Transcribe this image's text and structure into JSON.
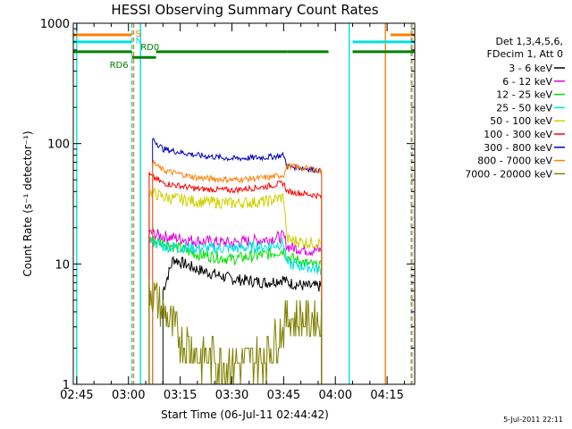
{
  "chart_data": {
    "type": "line",
    "title": "HESSI Observing Summary Count Rates",
    "xlabel": "Start Time (06-Jul-11 02:44:42)",
    "ylabel": "Count Rate (s⁻¹ detector⁻¹)",
    "ylog": true,
    "ylim": [
      1,
      1000
    ],
    "xlim_minutes": [
      -1,
      98
    ],
    "x_ticks": [
      {
        "m": 0,
        "label": "02:45"
      },
      {
        "m": 15,
        "label": "03:00"
      },
      {
        "m": 30,
        "label": "03:15"
      },
      {
        "m": 45,
        "label": "03:30"
      },
      {
        "m": 60,
        "label": "03:45"
      },
      {
        "m": 75,
        "label": "04:00"
      },
      {
        "m": 90,
        "label": "04:15"
      }
    ],
    "y_ticks": [
      {
        "v": 1,
        "label": "1"
      },
      {
        "v": 10,
        "label": "10"
      },
      {
        "v": 100,
        "label": "100"
      },
      {
        "v": 1000,
        "label": "1000"
      }
    ],
    "legend": {
      "title_line1": "Det 1,3,4,5,6,",
      "title_line2": "FDecim 1, Att 0",
      "placement": "right"
    },
    "series": [
      {
        "name": "3 - 6 keV",
        "color": "#000000",
        "x": [
          25,
          28,
          35,
          45,
          55,
          60,
          61,
          67,
          70,
          71
        ],
        "y": [
          6,
          11,
          9,
          7.5,
          7,
          7.5,
          7,
          6.5,
          6.5,
          6.5
        ]
      },
      {
        "name": "6 - 12 keV",
        "color": "#e000e0",
        "x": [
          21,
          25,
          35,
          45,
          55,
          60,
          61,
          67,
          70,
          71
        ],
        "y": [
          18,
          17,
          15.5,
          15,
          16,
          17,
          14,
          13,
          13,
          13
        ]
      },
      {
        "name": "12 - 25 keV",
        "color": "#00e000",
        "x": [
          21,
          25,
          35,
          45,
          55,
          60,
          61,
          67,
          70,
          71
        ],
        "y": [
          16,
          15,
          12,
          11,
          12,
          13,
          11.5,
          10,
          9.5,
          9.5
        ]
      },
      {
        "name": "25 - 50 keV",
        "color": "#00e0e0",
        "x": [
          21,
          25,
          35,
          45,
          55,
          60,
          61,
          67,
          70,
          71
        ],
        "y": [
          16,
          14,
          13.5,
          13.5,
          14,
          15,
          10,
          9.5,
          9,
          9
        ]
      },
      {
        "name": "50 - 100 keV",
        "color": "#d0d000",
        "x": [
          21,
          25,
          35,
          45,
          55,
          60,
          61,
          67,
          70,
          71
        ],
        "y": [
          40,
          36,
          33,
          32,
          33,
          36,
          16,
          15,
          15,
          15
        ]
      },
      {
        "name": "100 - 300 keV",
        "color": "#ff0000",
        "x": [
          21,
          25,
          35,
          45,
          55,
          60,
          61,
          67,
          70,
          71
        ],
        "y": [
          55,
          47,
          42,
          41,
          44,
          47,
          40,
          38,
          37,
          36
        ]
      },
      {
        "name": "300 - 800 keV",
        "color": "#0000c0",
        "x": [
          22,
          25,
          35,
          45,
          55,
          60,
          61,
          67,
          70,
          71
        ],
        "y": [
          110,
          90,
          80,
          75,
          77,
          80,
          65,
          62,
          60,
          58
        ]
      },
      {
        "name": "800 - 7000 keV",
        "color": "#ff8000",
        "x": [
          22,
          25,
          35,
          45,
          55,
          60,
          61,
          67,
          70,
          71
        ],
        "y": [
          70,
          60,
          52,
          50,
          52,
          55,
          65,
          62,
          60,
          58
        ]
      },
      {
        "name": "7000 - 20000 keV",
        "color": "#808000",
        "x": [
          21,
          25,
          30,
          35,
          45,
          55,
          60,
          61,
          67,
          70,
          71
        ],
        "y": [
          6.5,
          4,
          2.5,
          1.8,
          1.5,
          1.8,
          3,
          3.5,
          3.5,
          3.5,
          3.5
        ]
      }
    ],
    "flags": [
      {
        "label": "S",
        "color": "#ff8000",
        "level": 800,
        "segments": [
          [
            -1,
            16
          ],
          [
            91,
            98
          ]
        ]
      },
      {
        "label": "N",
        "color": "#00e0e0",
        "level": 700,
        "segments": [
          [
            -1,
            16
          ],
          [
            80,
            98
          ]
        ]
      },
      {
        "label": "RD0",
        "color": "#008000",
        "level": 580,
        "segments": [
          [
            -1,
            16
          ],
          [
            23,
            61
          ],
          [
            61,
            73
          ],
          [
            80,
            98
          ]
        ]
      },
      {
        "label": "RD6",
        "color": "#008000",
        "level": 520,
        "segments": [
          [
            16,
            23
          ]
        ]
      }
    ],
    "vlines": [
      {
        "m": 0,
        "color": "#00e0e0",
        "dashed": false
      },
      {
        "m": 16,
        "color": "#00e0e0",
        "dashed": true
      },
      {
        "m": 16.5,
        "color": "#ff8000",
        "dashed": true
      },
      {
        "m": 18.5,
        "color": "#00e0e0",
        "dashed": false
      },
      {
        "m": 79,
        "color": "#00e0e0",
        "dashed": false
      },
      {
        "m": 89.5,
        "color": "#ff8000",
        "dashed": false
      },
      {
        "m": 97,
        "color": "#00e0e0",
        "dashed": true
      },
      {
        "m": 97.2,
        "color": "#ff8000",
        "dashed": true
      }
    ],
    "footer": "5-Jul-2011 22:11"
  }
}
